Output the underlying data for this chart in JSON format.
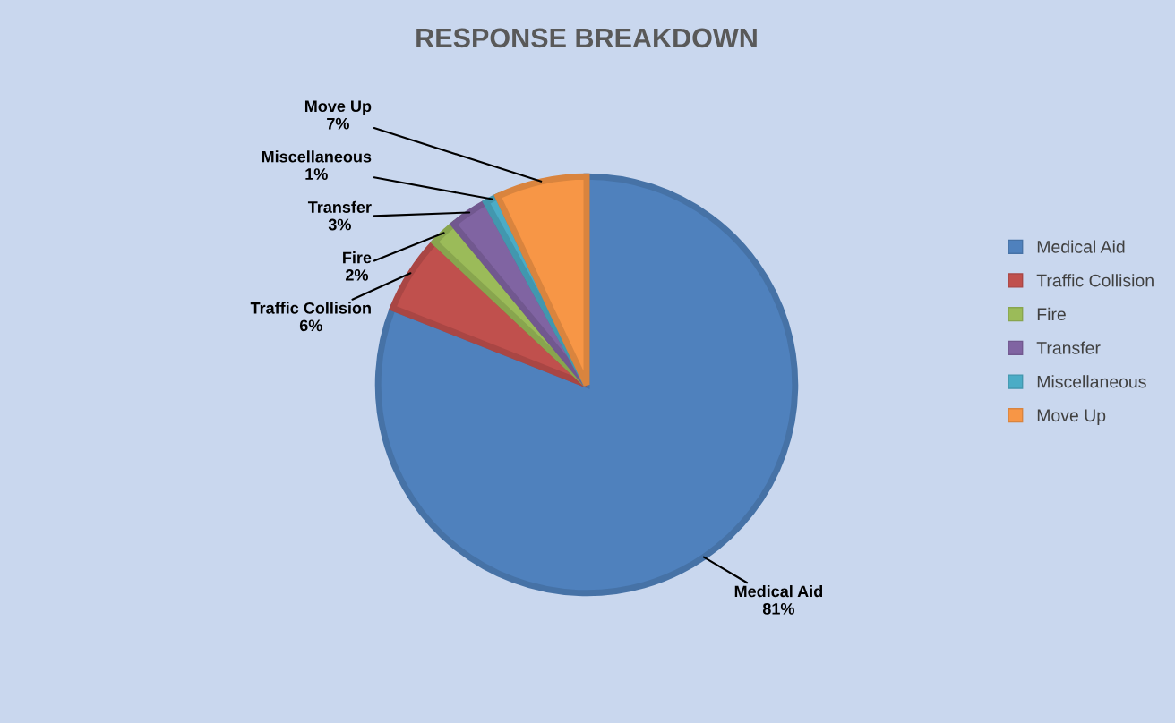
{
  "chart_data": {
    "type": "pie",
    "title": "RESPONSE BREAKDOWN",
    "categories": [
      "Medical Aid",
      "Traffic Collision",
      "Fire",
      "Transfer",
      "Miscellaneous",
      "Move Up"
    ],
    "values": [
      81,
      6,
      2,
      3,
      1,
      7
    ],
    "value_labels": [
      "81%",
      "6%",
      "2%",
      "3%",
      "1%",
      "7%"
    ],
    "colors": [
      "#4f81bd",
      "#c0504d",
      "#9bbb59",
      "#8064a2",
      "#4bacc6",
      "#f79646"
    ],
    "legend": "right"
  }
}
